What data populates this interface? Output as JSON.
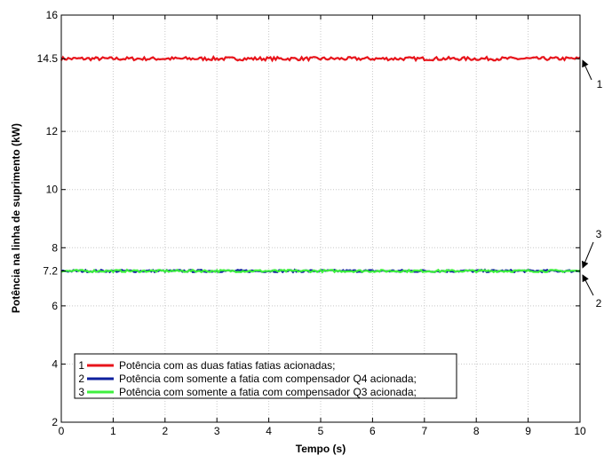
{
  "chart_data": {
    "type": "line",
    "xlabel": "Tempo (s)",
    "ylabel": "Potência na linha de suprimento (kW)",
    "xlim": [
      0,
      10
    ],
    "ylim": [
      2,
      16
    ],
    "x_ticks": [
      0,
      1,
      2,
      3,
      4,
      5,
      6,
      7,
      8,
      9,
      10
    ],
    "y_ticks": [
      2,
      4,
      6,
      7.2,
      8,
      10,
      12,
      14.5,
      16
    ],
    "grid": true,
    "legend_position": "bottom-left",
    "series": [
      {
        "number": "1",
        "name": "Potência com as duas fatias fatias acionadas;",
        "color": "#e8141b",
        "x": [
          0,
          10
        ],
        "y": [
          14.5,
          14.5
        ],
        "noise": 0.06
      },
      {
        "number": "2",
        "name": "Potência com somente a fatia com compensador Q4 acionada;",
        "color": "#0d1f9e",
        "x": [
          0,
          10
        ],
        "y": [
          7.2,
          7.2
        ],
        "noise": 0.04
      },
      {
        "number": "3",
        "name": "Potência com somente a fatia com compensador Q3 acionada;",
        "color": "#3ef03e",
        "x": [
          0,
          10
        ],
        "y": [
          7.2,
          7.2
        ],
        "noise": 0.04
      }
    ],
    "annotations": [
      {
        "text": "1",
        "target_x": 10,
        "target_y": 14.5
      },
      {
        "text": "3",
        "target_x": 10,
        "target_y": 7.25
      },
      {
        "text": "2",
        "target_x": 10,
        "target_y": 7.15
      }
    ]
  }
}
